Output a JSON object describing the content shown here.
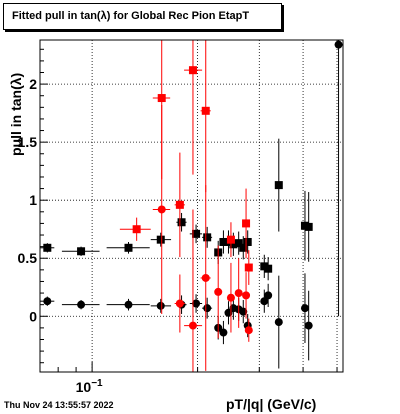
{
  "title": "Fitted pull in tan(λ) for Global Rec Pion EtapT",
  "xlabel": "pT/|q| (GeV/c)",
  "ylabel": "pull in tan(λ)",
  "timestamp": "Thu Nov 24 13:55:57 2022",
  "colors": {
    "black_series": "#000000",
    "red_series": "#ff0000",
    "grid": "#000000"
  },
  "chart_data": {
    "type": "scatter",
    "title": "Fitted pull in tan(λ) for Global Rec Pion EtapT",
    "xlabel": "pT/|q| (GeV/c)",
    "ylabel": "pull in tan(λ)",
    "x_scale": "log",
    "xlim": [
      0.071,
      0.52
    ],
    "ylim": [
      -0.48,
      2.38
    ],
    "x_tick_labels": [
      {
        "value": 0.1,
        "label": "10−1"
      }
    ],
    "y_ticks": [
      0,
      0.5,
      1,
      1.5,
      2
    ],
    "y_tick_labels": [
      "0",
      "0.5",
      "1",
      "1.5",
      "2"
    ],
    "grid": true,
    "series": [
      {
        "marker": "square",
        "color": "#000000",
        "points": [
          {
            "x": 0.0745,
            "y": 0.59,
            "xlo": 0.071,
            "xhi": 0.078,
            "yerr": 0.04
          },
          {
            "x": 0.093,
            "y": 0.56,
            "xlo": 0.082,
            "xhi": 0.105,
            "yerr": 0.04
          },
          {
            "x": 0.127,
            "y": 0.59,
            "xlo": 0.11,
            "xhi": 0.146,
            "yerr": 0.05
          },
          {
            "x": 0.157,
            "y": 0.66,
            "xlo": 0.147,
            "xhi": 0.168,
            "yerr": 0.06
          },
          {
            "x": 0.18,
            "y": 0.81,
            "xlo": 0.174,
            "xhi": 0.186,
            "yerr": 0.08
          },
          {
            "x": 0.198,
            "y": 0.71,
            "xlo": 0.19,
            "xhi": 0.206,
            "yerr": 0.08
          },
          {
            "x": 0.213,
            "y": 0.68,
            "xlo": 0.206,
            "xhi": 0.22,
            "yerr": 0.09
          },
          {
            "x": 0.229,
            "y": 0.55,
            "xlo": 0.224,
            "xhi": 0.235,
            "yerr": 0.1
          },
          {
            "x": 0.237,
            "y": 0.64,
            "xlo": 0.235,
            "xhi": 0.24,
            "yerr": 0.1
          },
          {
            "x": 0.245,
            "y": 0.64,
            "xlo": 0.242,
            "xhi": 0.248,
            "yerr": 0.1
          },
          {
            "x": 0.253,
            "y": 0.62,
            "xlo": 0.25,
            "xhi": 0.256,
            "yerr": 0.1
          },
          {
            "x": 0.262,
            "y": 0.63,
            "xlo": 0.258,
            "xhi": 0.266,
            "yerr": 0.1
          },
          {
            "x": 0.27,
            "y": 0.59,
            "xlo": 0.266,
            "xhi": 0.273,
            "yerr": 0.1
          },
          {
            "x": 0.278,
            "y": 0.64,
            "xlo": 0.274,
            "xhi": 0.282,
            "yerr": 0.1
          },
          {
            "x": 0.31,
            "y": 0.43,
            "xlo": 0.307,
            "xhi": 0.313,
            "yerr": 0.1
          },
          {
            "x": 0.318,
            "y": 0.41,
            "xlo": 0.315,
            "xhi": 0.321,
            "yerr": 0.1
          },
          {
            "x": 0.341,
            "y": 1.13,
            "xlo": 0.337,
            "xhi": 0.345,
            "yerr": 0.4
          },
          {
            "x": 0.405,
            "y": 0.78,
            "xlo": 0.401,
            "xhi": 0.409,
            "yerr": 0.3
          },
          {
            "x": 0.415,
            "y": 0.77,
            "xlo": 0.411,
            "xhi": 0.419,
            "yerr": 0.3
          }
        ]
      },
      {
        "marker": "circle",
        "color": "#000000",
        "points": [
          {
            "x": 0.0745,
            "y": 0.13,
            "xlo": 0.071,
            "xhi": 0.078,
            "yerr": 0.04
          },
          {
            "x": 0.093,
            "y": 0.1,
            "xlo": 0.082,
            "xhi": 0.105,
            "yerr": 0.04
          },
          {
            "x": 0.127,
            "y": 0.1,
            "xlo": 0.11,
            "xhi": 0.146,
            "yerr": 0.05
          },
          {
            "x": 0.157,
            "y": 0.09,
            "xlo": 0.147,
            "xhi": 0.168,
            "yerr": 0.06
          },
          {
            "x": 0.18,
            "y": 0.1,
            "xlo": 0.174,
            "xhi": 0.186,
            "yerr": 0.08
          },
          {
            "x": 0.198,
            "y": 0.11,
            "xlo": 0.19,
            "xhi": 0.206,
            "yerr": 0.08
          },
          {
            "x": 0.213,
            "y": 0.07,
            "xlo": 0.206,
            "xhi": 0.22,
            "yerr": 0.09
          },
          {
            "x": 0.229,
            "y": -0.1,
            "xlo": 0.224,
            "xhi": 0.235,
            "yerr": 0.1
          },
          {
            "x": 0.237,
            "y": -0.14,
            "xlo": 0.235,
            "xhi": 0.24,
            "yerr": 0.1
          },
          {
            "x": 0.245,
            "y": 0.03,
            "xlo": 0.242,
            "xhi": 0.248,
            "yerr": 0.1
          },
          {
            "x": 0.253,
            "y": 0.07,
            "xlo": 0.25,
            "xhi": 0.256,
            "yerr": 0.1
          },
          {
            "x": 0.262,
            "y": 0.06,
            "xlo": 0.258,
            "xhi": 0.266,
            "yerr": 0.1
          },
          {
            "x": 0.27,
            "y": 0.04,
            "xlo": 0.266,
            "xhi": 0.273,
            "yerr": 0.1
          },
          {
            "x": 0.278,
            "y": -0.08,
            "xlo": 0.274,
            "xhi": 0.282,
            "yerr": 0.1
          },
          {
            "x": 0.31,
            "y": 0.13,
            "xlo": 0.307,
            "xhi": 0.313,
            "yerr": 0.1
          },
          {
            "x": 0.318,
            "y": 0.18,
            "xlo": 0.315,
            "xhi": 0.321,
            "yerr": 0.1
          },
          {
            "x": 0.341,
            "y": -0.05,
            "xlo": 0.337,
            "xhi": 0.345,
            "yerr": 0.4
          },
          {
            "x": 0.405,
            "y": 0.07,
            "xlo": 0.401,
            "xhi": 0.409,
            "yerr": 0.3
          },
          {
            "x": 0.415,
            "y": -0.08,
            "xlo": 0.411,
            "xhi": 0.419,
            "yerr": 0.3
          },
          {
            "x": 0.505,
            "y": 2.34,
            "xlo": 0.501,
            "xhi": 0.509,
            "yerr": 2.34
          }
        ]
      },
      {
        "marker": "square",
        "color": "#ff0000",
        "points": [
          {
            "x": 0.134,
            "y": 0.75,
            "xlo": 0.12,
            "xhi": 0.147,
            "yerr": 0.1
          },
          {
            "x": 0.158,
            "y": 1.88,
            "xlo": 0.149,
            "xhi": 0.167,
            "yerr": 0.7
          },
          {
            "x": 0.178,
            "y": 0.96,
            "xlo": 0.172,
            "xhi": 0.184,
            "yerr": 0.45
          },
          {
            "x": 0.194,
            "y": 2.12,
            "xlo": 0.183,
            "xhi": 0.206,
            "yerr": 0.9
          },
          {
            "x": 0.211,
            "y": 1.77,
            "xlo": 0.204,
            "xhi": 0.218,
            "yerr": 0.7
          },
          {
            "x": 0.249,
            "y": 0.66,
            "xlo": 0.246,
            "xhi": 0.252,
            "yerr": 0.15
          },
          {
            "x": 0.275,
            "y": 0.8,
            "xlo": 0.271,
            "xhi": 0.279,
            "yerr": 0.3
          },
          {
            "x": 0.28,
            "y": 0.42,
            "xlo": 0.277,
            "xhi": 0.283,
            "yerr": 0.15
          }
        ]
      },
      {
        "marker": "circle",
        "color": "#ff0000",
        "points": [
          {
            "x": 0.158,
            "y": 0.92,
            "xlo": 0.149,
            "xhi": 0.167,
            "yerr": 0.9
          },
          {
            "x": 0.178,
            "y": 0.11,
            "xlo": 0.172,
            "xhi": 0.184,
            "yerr": 0.25
          },
          {
            "x": 0.194,
            "y": -0.08,
            "xlo": 0.183,
            "xhi": 0.206,
            "yerr": 1.0
          },
          {
            "x": 0.211,
            "y": 0.33,
            "xlo": 0.204,
            "xhi": 0.218,
            "yerr": 0.8
          },
          {
            "x": 0.229,
            "y": 0.21,
            "xlo": 0.224,
            "xhi": 0.235,
            "yerr": 0.4
          },
          {
            "x": 0.249,
            "y": 0.16,
            "xlo": 0.246,
            "xhi": 0.252,
            "yerr": 0.3
          },
          {
            "x": 0.262,
            "y": 0.2,
            "xlo": 0.258,
            "xhi": 0.266,
            "yerr": 0.3
          },
          {
            "x": 0.275,
            "y": 0.18,
            "xlo": 0.271,
            "xhi": 0.279,
            "yerr": 0.2
          },
          {
            "x": 0.28,
            "y": -0.12,
            "xlo": 0.277,
            "xhi": 0.283,
            "yerr": 0.1
          }
        ]
      }
    ]
  }
}
